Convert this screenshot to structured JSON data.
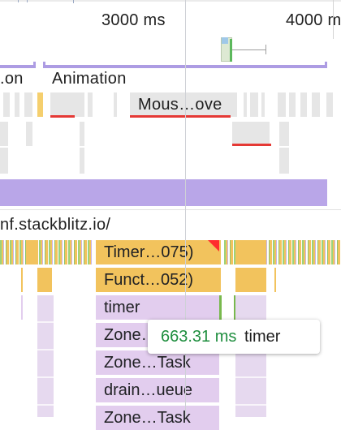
{
  "timeline": {
    "ticks": [
      {
        "label": "3000 ms"
      },
      {
        "label": "4000 m"
      }
    ]
  },
  "tracks": {
    "left_partial_label": ".on",
    "animation_label": "Animation",
    "animation_event_label": "Mous…ove"
  },
  "main_thread": {
    "url_label": "nf.stackblitz.io/",
    "flame": [
      {
        "label": "Timer…075)"
      },
      {
        "label": "Funct…052)"
      },
      {
        "label": "timer"
      },
      {
        "label": "Zone…"
      },
      {
        "label": "Zone…Task"
      },
      {
        "label": "drain…ueue"
      },
      {
        "label": "Zone…Task"
      }
    ]
  },
  "tooltip": {
    "duration": "663.31 ms",
    "name": "timer"
  },
  "colors": {
    "timer_task": "#f2c35d",
    "script": "#e2cdee",
    "animation_track": "#ad9ce3",
    "long_task_marker": "#e53935",
    "duration_text": "#1e8e3e"
  }
}
